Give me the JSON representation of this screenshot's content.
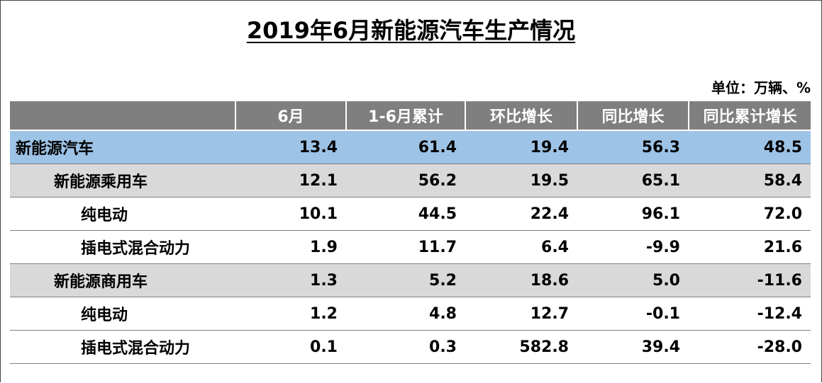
{
  "chart_data": {
    "type": "table",
    "title": "2019年6月新能源汽车生产情况",
    "unit": "单位：万辆、%",
    "columns": [
      "",
      "6月",
      "1-6月累计",
      "环比增长",
      "同比增长",
      "同比累计增长"
    ],
    "rows": [
      {
        "label": "新能源汽车",
        "level": 0,
        "values": [
          "13.4",
          "61.4",
          "19.4",
          "56.3",
          "48.5"
        ]
      },
      {
        "label": "新能源乘用车",
        "level": 1,
        "values": [
          "12.1",
          "56.2",
          "19.5",
          "65.1",
          "58.4"
        ]
      },
      {
        "label": "纯电动",
        "level": 2,
        "values": [
          "10.1",
          "44.5",
          "22.4",
          "96.1",
          "72.0"
        ]
      },
      {
        "label": "插电式混合动力",
        "level": 2,
        "values": [
          "1.9",
          "11.7",
          "6.4",
          "-9.9",
          "21.6"
        ]
      },
      {
        "label": "新能源商用车",
        "level": 1,
        "values": [
          "1.3",
          "5.2",
          "18.6",
          "5.0",
          "-11.6"
        ]
      },
      {
        "label": "纯电动",
        "level": 2,
        "values": [
          "1.2",
          "4.8",
          "12.7",
          "-0.1",
          "-12.4"
        ]
      },
      {
        "label": "插电式混合动力",
        "level": 2,
        "values": [
          "0.1",
          "0.3",
          "582.8",
          "39.4",
          "-28.0"
        ]
      }
    ]
  }
}
